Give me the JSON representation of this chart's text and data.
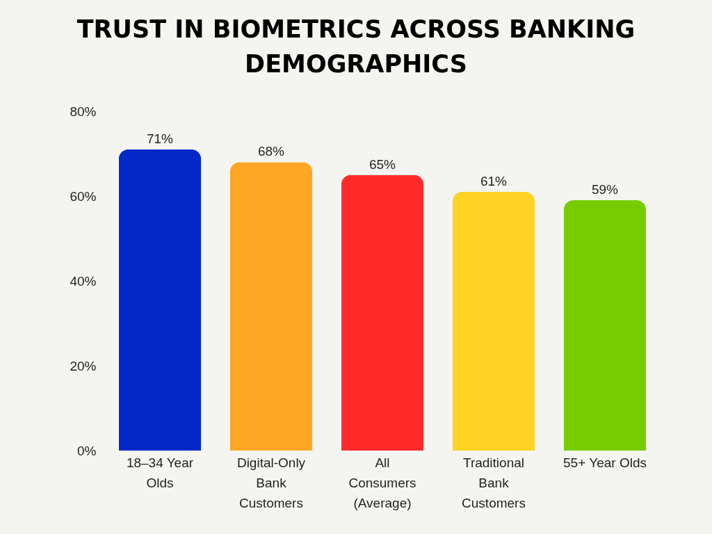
{
  "chart_data": {
    "type": "bar",
    "title": "TRUST IN BIOMETRICS ACROSS BANKING DEMOGRAPHICS",
    "categories": [
      "18–34 Year Olds",
      "Digital-Only Bank Customers",
      "All Consumers (Average)",
      "Traditional Bank Customers",
      "55+ Year Olds"
    ],
    "values": [
      71,
      68,
      65,
      61,
      59
    ],
    "colors": [
      "#0328c8",
      "#ffa624",
      "#ff2b2b",
      "#ffd324",
      "#76cc00"
    ],
    "value_labels": [
      "71%",
      "68%",
      "65%",
      "61%",
      "59%"
    ],
    "ylim": [
      0,
      80
    ],
    "yticks": [
      {
        "value": 0,
        "label": "0%"
      },
      {
        "value": 20,
        "label": "20%"
      },
      {
        "value": 40,
        "label": "40%"
      },
      {
        "value": 60,
        "label": "60%"
      },
      {
        "value": 80,
        "label": "80%"
      }
    ],
    "grid": false
  }
}
